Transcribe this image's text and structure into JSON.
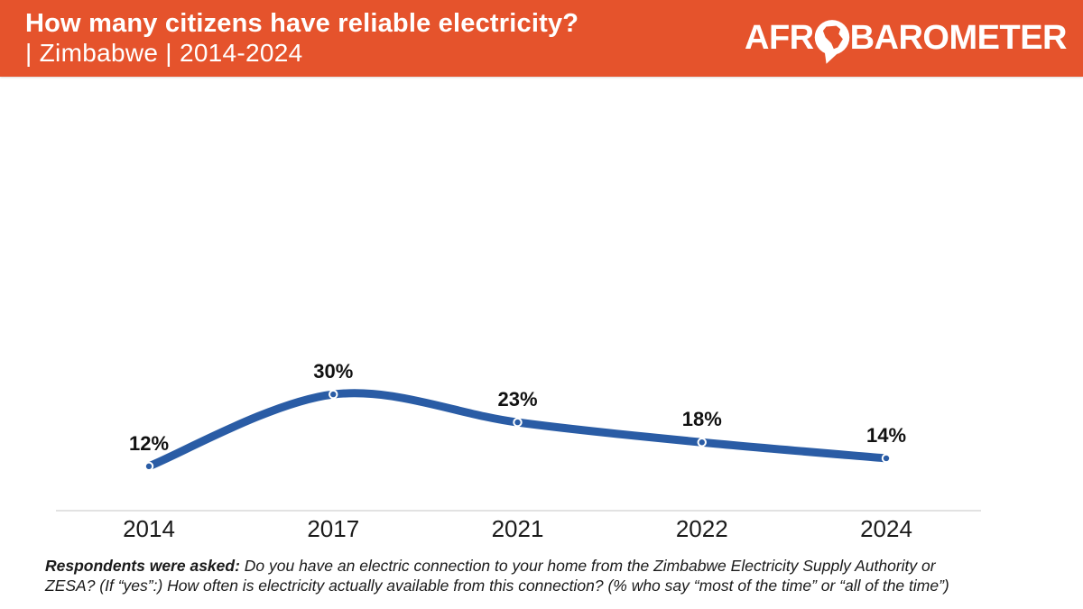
{
  "header": {
    "title": "How many citizens have reliable electricity?",
    "subtitle": "| Zimbabwe | 2014-2024",
    "background_color": "#E5532C",
    "logo": {
      "prefix": "AFR",
      "suffix": "BAROMETER",
      "o_icon": "africa-speech-bubble-icon"
    }
  },
  "chart_data": {
    "type": "line",
    "categories": [
      "2014",
      "2017",
      "2021",
      "2022",
      "2024"
    ],
    "values": [
      12,
      30,
      23,
      18,
      14
    ],
    "point_labels": [
      "12%",
      "30%",
      "23%",
      "18%",
      "14%"
    ],
    "title": "How many citizens have reliable electricity? | Zimbabwe | 2014-2024",
    "xlabel": "",
    "ylabel": "",
    "ylim": [
      0,
      45
    ],
    "grid": false,
    "legend": "none",
    "line_color": "#2A5CA5",
    "marker_stroke_color": "#ffffff",
    "axis_color": "#D9D9D9",
    "label_color": "#111111"
  },
  "footnote": {
    "lead": "Respondents were asked:",
    "line1": " Do you have an electric connection to your home from the Zimbabwe  Electricity Supply Authority or",
    "line2": "ZESA? (If “yes”:) How often is electricity actually available from this  connection? (% who say “most of the time” or “all of the time”)"
  }
}
